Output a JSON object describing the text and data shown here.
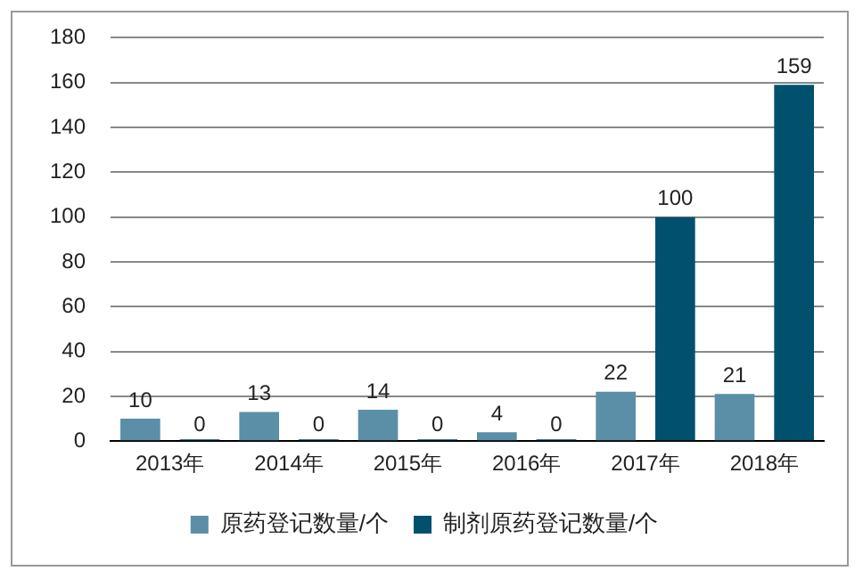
{
  "chart_data": {
    "type": "bar",
    "categories": [
      "2013年",
      "2014年",
      "2015年",
      "2016年",
      "2017年",
      "2018年"
    ],
    "series": [
      {
        "name": "原药登记数量/个",
        "color": "#5b8fa8",
        "values": [
          10,
          13,
          14,
          4,
          22,
          21
        ]
      },
      {
        "name": "制剂原药登记数量/个",
        "color": "#00506e",
        "values": [
          0,
          0,
          0,
          0,
          100,
          159
        ]
      }
    ],
    "ylim": [
      0,
      180
    ],
    "yticks": [
      0,
      20,
      40,
      60,
      80,
      100,
      120,
      140,
      160,
      180
    ],
    "grid": "y",
    "legend": "bottom",
    "data_labels": true
  }
}
